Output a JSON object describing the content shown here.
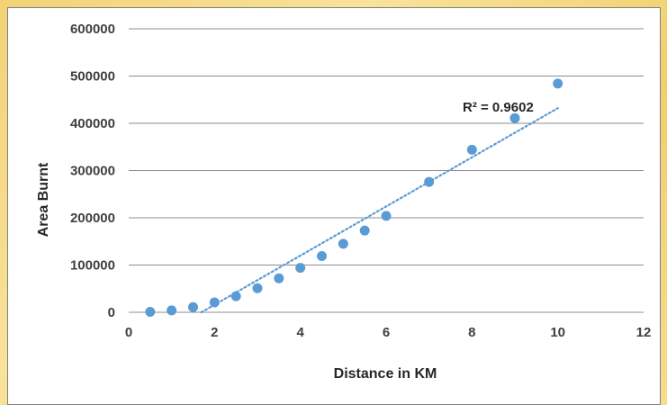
{
  "chart_data": {
    "type": "scatter",
    "title": "",
    "xlabel": "Distance in KM",
    "ylabel": "Area Burnt",
    "xlim": [
      0,
      12
    ],
    "ylim": [
      0,
      600000
    ],
    "xticks": [
      0,
      2,
      4,
      6,
      8,
      10,
      12
    ],
    "yticks": [
      0,
      100000,
      200000,
      300000,
      400000,
      500000,
      600000
    ],
    "grid": "horizontal",
    "legend": "none",
    "series": [
      {
        "x": [
          0.5,
          1,
          1.5,
          2,
          2.5,
          3,
          3.5,
          4,
          4.5,
          5,
          5.5,
          6,
          7,
          8,
          9,
          10
        ],
        "y": [
          1000,
          4000,
          11000,
          21000,
          34000,
          51000,
          72000,
          94000,
          119000,
          145000,
          173000,
          204000,
          276000,
          344000,
          411000,
          484000
        ]
      }
    ],
    "trendline": {
      "type": "linear",
      "style": "dotted",
      "annotation": "R² = 0.9602",
      "x_range": [
        0.5,
        10
      ],
      "approx_slope": 52000,
      "approx_intercept": -88000
    },
    "colors": {
      "marker": "#5b9bd5",
      "gridline": "#8c8c8c"
    }
  }
}
